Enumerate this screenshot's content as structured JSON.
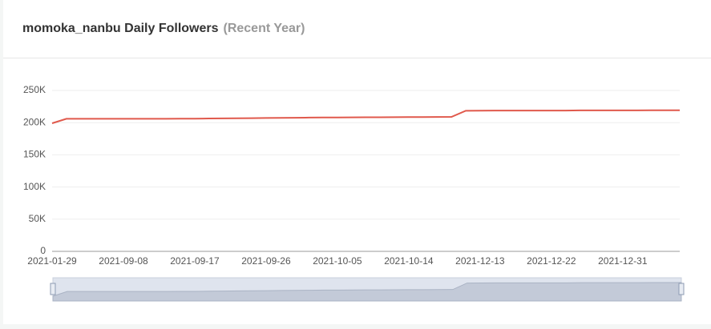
{
  "chart_data": {
    "type": "line",
    "title": "momoka_nanbu Daily Followers",
    "subtitle": "(Recent Year)",
    "categories": [
      "2021-01-29",
      null,
      null,
      null,
      null,
      "2021-09-08",
      null,
      null,
      null,
      null,
      "2021-09-17",
      null,
      null,
      null,
      null,
      "2021-09-26",
      null,
      null,
      null,
      null,
      "2021-10-05",
      null,
      null,
      null,
      null,
      "2021-10-14",
      null,
      null,
      null,
      null,
      "2021-12-13",
      null,
      null,
      null,
      null,
      "2021-12-22",
      null,
      null,
      null,
      null,
      "2021-12-31",
      null,
      null,
      null,
      null
    ],
    "series": [
      {
        "name": "Followers",
        "color": "#e0594c",
        "values": [
          199000,
          206000,
          206000,
          206000,
          206000,
          206000,
          206000,
          206000,
          206000,
          206100,
          206200,
          206400,
          206600,
          206800,
          207000,
          207200,
          207400,
          207600,
          207800,
          208000,
          208100,
          208200,
          208300,
          208400,
          208500,
          208600,
          208700,
          208800,
          208900,
          218500,
          218600,
          218700,
          218700,
          218700,
          218700,
          218700,
          218700,
          219000,
          219000,
          219000,
          219100,
          219100,
          219200,
          219200,
          219200
        ]
      }
    ],
    "ylim": [
      0,
      250000
    ],
    "yticks": [
      0,
      {
        "value": 50000,
        "label": "50K"
      },
      {
        "value": 100000,
        "label": "100K"
      },
      {
        "value": 150000,
        "label": "150K"
      },
      {
        "value": 200000,
        "label": "200K"
      },
      {
        "value": 250000,
        "label": "250K"
      }
    ],
    "grid": true
  }
}
